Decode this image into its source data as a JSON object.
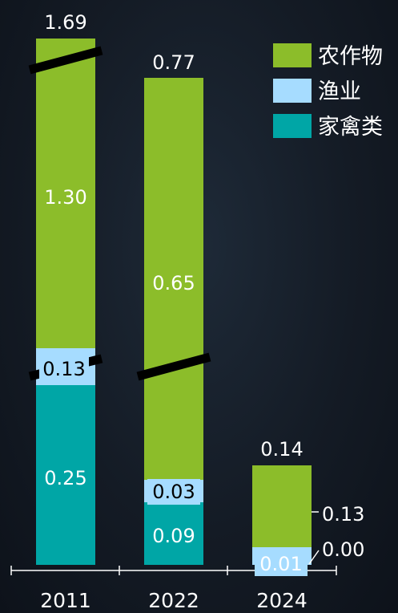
{
  "chart_data": {
    "type": "bar",
    "stacked": true,
    "broken_axis": true,
    "categories": [
      "2011",
      "2022",
      "2024"
    ],
    "series": [
      {
        "name": "家禽类",
        "color": "#00a6a6",
        "values": [
          0.25,
          0.09,
          0.0
        ]
      },
      {
        "name": "渔业",
        "color": "#a6dcff",
        "values": [
          0.13,
          0.03,
          0.01
        ]
      },
      {
        "name": "农作物",
        "color": "#8cbd2a",
        "values": [
          1.3,
          0.65,
          0.13
        ]
      }
    ],
    "totals": [
      "1.69",
      "0.77",
      "0.14"
    ],
    "segment_labels": {
      "poultry": [
        "0.25",
        "0.09",
        "0.00"
      ],
      "fishery": [
        "0.13",
        "0.03",
        "0.01"
      ],
      "crops": [
        "1.30",
        "0.65",
        "0.13"
      ]
    },
    "legend_placement": "top-right",
    "legend": [
      {
        "label": "农作物",
        "color": "#8cbd2a"
      },
      {
        "label": "渔业",
        "color": "#a6dcff"
      },
      {
        "label": "家禽类",
        "color": "#00a6a6"
      }
    ],
    "text_color": "#ffffff",
    "break_mark_color": "#000000"
  }
}
